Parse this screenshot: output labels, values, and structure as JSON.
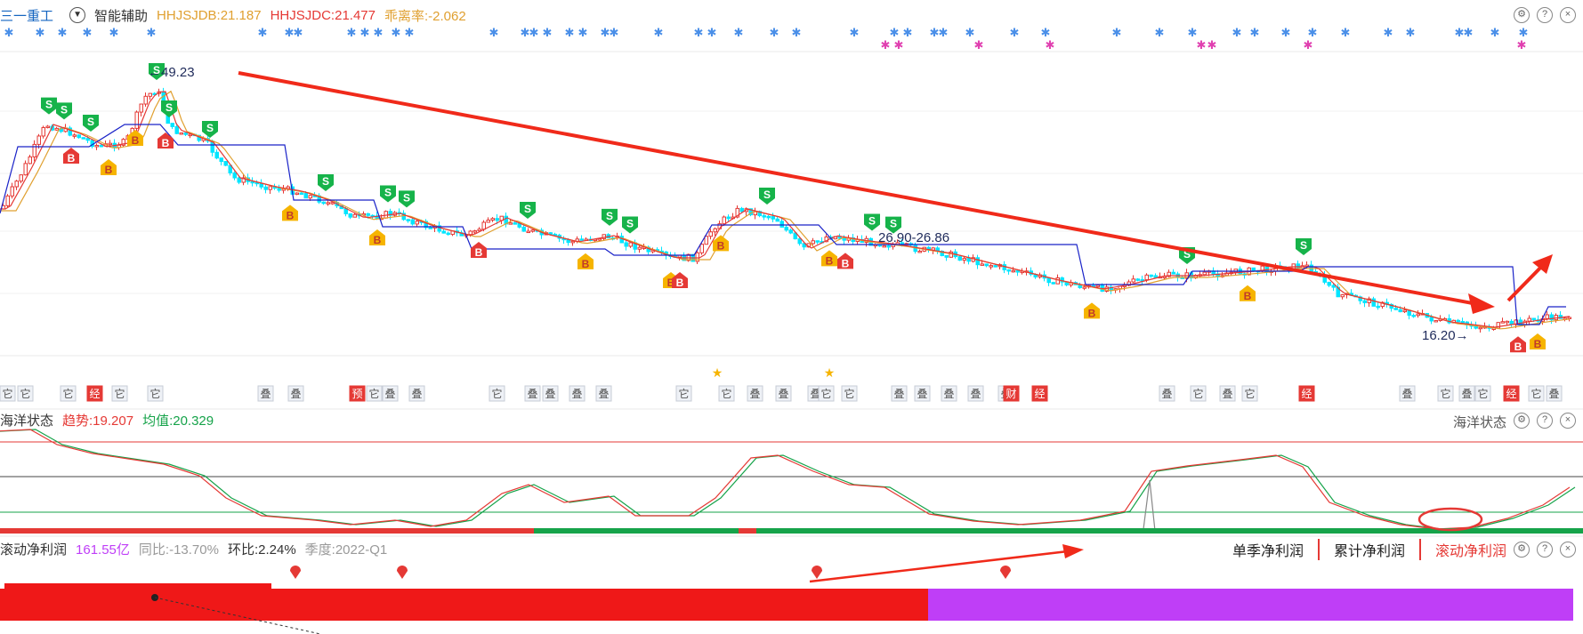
{
  "header": {
    "stock_name": "三一重工",
    "tool": "智能辅助",
    "ind1": "HHJSJDB:21.187",
    "ind2": "HHJSJDC:21.477",
    "ind3": "乖离率:-2.062"
  },
  "main_chart": {
    "high_label": "←49.23",
    "low_label": "16.20→",
    "range_label": "26.90-26.86",
    "signal_buy": "B",
    "signal_sell": "S",
    "event_labels": [
      "它",
      "它",
      "它",
      "经",
      "它",
      "它",
      "叠",
      "叠",
      "预",
      "它",
      "叠",
      "叠",
      "它",
      "叠",
      "叠",
      "叠",
      "叠",
      "它",
      "它",
      "叠",
      "叠",
      "叠",
      "它",
      "它",
      "叠",
      "叠",
      "叠",
      "叠",
      "叠",
      "财",
      "经",
      "叠",
      "它",
      "叠",
      "它",
      "经",
      "叠",
      "它",
      "叠",
      "它",
      "经",
      "它",
      "叠"
    ]
  },
  "ocean_panel": {
    "title": "海洋状态",
    "trend": "趋势:19.207",
    "mean": "均值:20.329",
    "right_title": "海洋状态"
  },
  "profit_panel": {
    "title": "滚动净利润",
    "value": "161.55亿",
    "yoy": "同比:-13.70%",
    "qoq": "环比:2.24%",
    "season": "季度:2022-Q1",
    "tabs": [
      "单季净利润",
      "累计净利润",
      "滚动净利润"
    ]
  },
  "colors": {
    "up": "#e53935",
    "down": "#00e5ff",
    "blue_line": "#1a23c8",
    "purple": "#bf3ef7",
    "green": "#16a34a"
  },
  "chart_data": {
    "type": "line",
    "title": "",
    "annotated_values": {
      "high": 49.23,
      "low": 16.2,
      "range": [
        26.9,
        26.86
      ]
    },
    "series": [
      {
        "name": "HHJSJDB",
        "values": [
          21.187
        ]
      },
      {
        "name": "HHJSJDC",
        "values": [
          21.477
        ]
      }
    ]
  }
}
